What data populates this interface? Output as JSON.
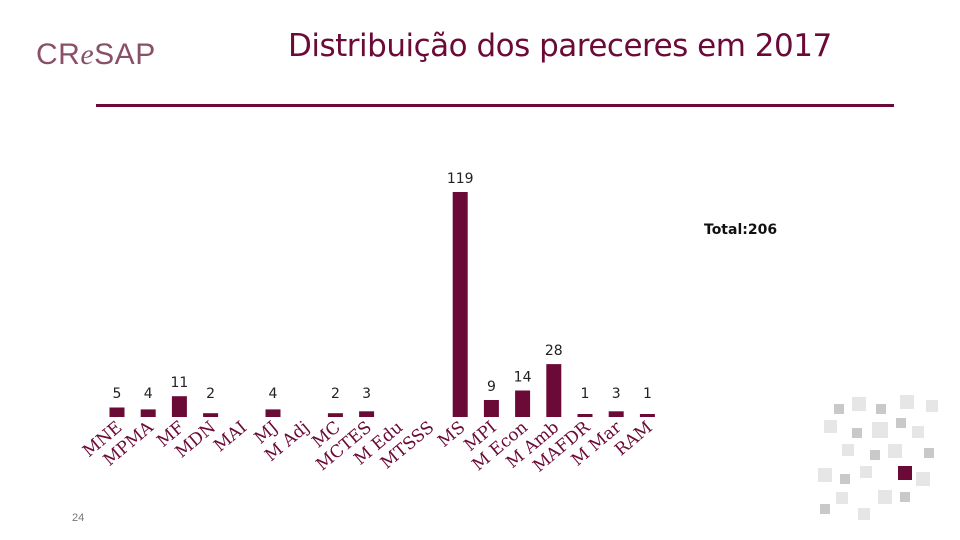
{
  "logo": {
    "text_part1": "CR",
    "text_part2": "e",
    "text_part3": "SAP"
  },
  "header": {
    "title": "Distribuição dos pareceres em 2017"
  },
  "total_label": "Total:206",
  "page_number": "24",
  "colors": {
    "bar": "#6b0a37",
    "title": "#6b0a37",
    "logo": "#8a5068"
  },
  "chart_data": {
    "type": "bar",
    "title": "Distribuição dos pareceres em 2017",
    "categories": [
      "MNE",
      "MPMA",
      "MF",
      "MDN",
      "MAI",
      "MJ",
      "M Adj",
      "MC",
      "MCTES",
      "M Edu",
      "MTSSS",
      "MS",
      "MPI",
      "M Econ",
      "M Amb",
      "MAFDR",
      "M Mar",
      "RAM"
    ],
    "values": [
      5,
      4,
      11,
      2,
      null,
      4,
      null,
      2,
      3,
      null,
      null,
      119,
      9,
      14,
      28,
      1,
      3,
      1
    ],
    "value_labels": [
      "5",
      "4",
      "11",
      "2",
      "",
      "4",
      "",
      "2",
      "3",
      "",
      "",
      "119",
      "9",
      "14",
      "28",
      "1",
      "3",
      "1"
    ],
    "ylim": [
      0,
      119
    ],
    "xlabel": "",
    "ylabel": "",
    "grid": false,
    "legend": "none"
  }
}
